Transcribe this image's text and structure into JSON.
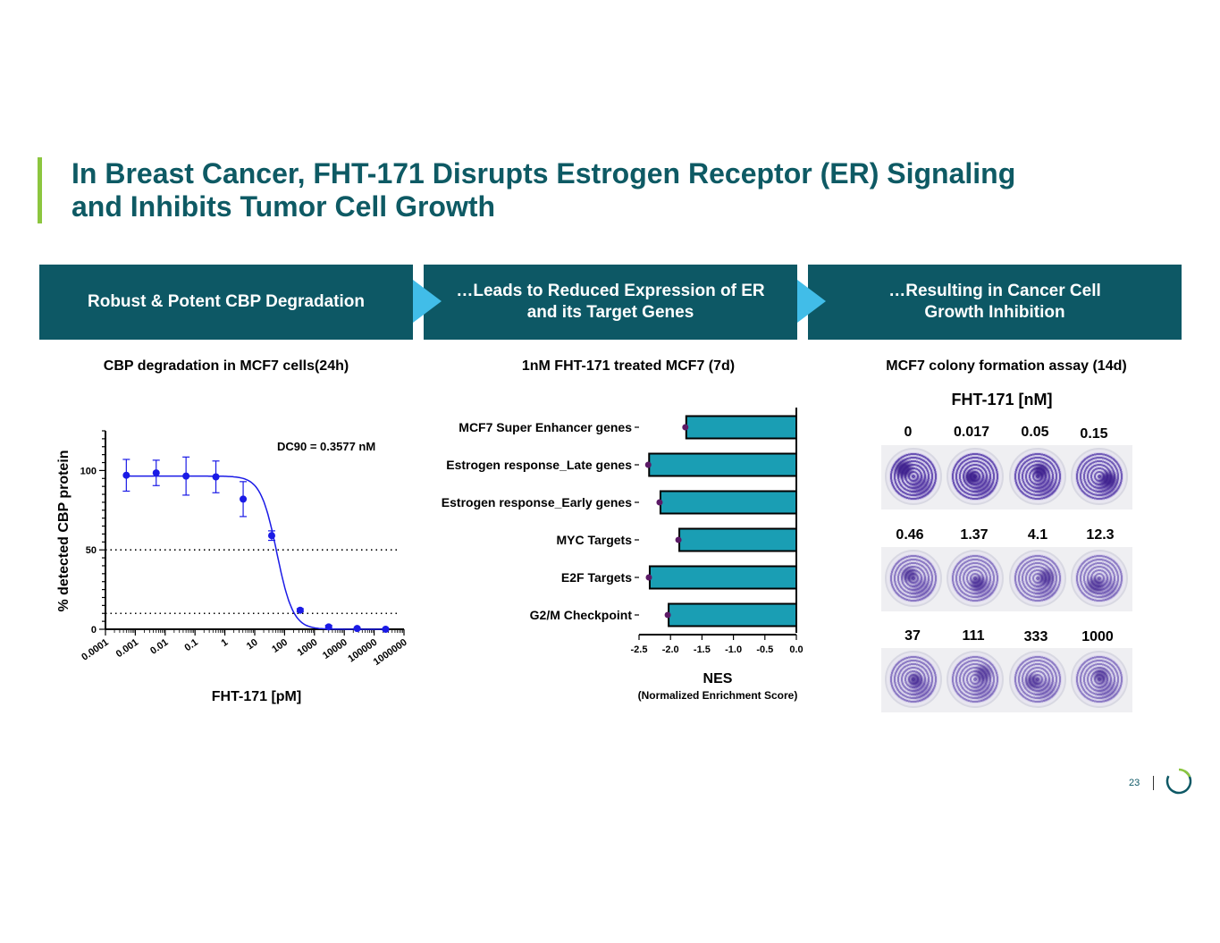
{
  "slide": {
    "title_line1": "In Breast Cancer, FHT-171 Disrupts Estrogen Receptor (ER) Signaling",
    "title_line2": "and Inhibits Tumor Cell Growth",
    "page_number": "23",
    "colors": {
      "accent_bar": "#8cc63f",
      "title": "#0e5a64",
      "banner": "#0d5865",
      "arrow": "#41bde8"
    }
  },
  "banners": [
    {
      "label": "Robust & Potent CBP Degradation"
    },
    {
      "line1": "…Leads to Reduced Expression of ER",
      "line2": "and its Target Genes"
    },
    {
      "line1": "…Resulting in Cancer Cell",
      "line2": "Growth Inhibition"
    }
  ],
  "panel_titles": {
    "left": "CBP degradation in MCF7 cells(24h)",
    "middle": "1nM FHT-171 treated MCF7 (7d)",
    "right": "MCF7 colony formation assay (14d)"
  },
  "chart_data": [
    {
      "type": "scatter",
      "title": "CBP degradation in MCF7 cells(24h)",
      "xlabel": "FHT-171 [pM]",
      "ylabel": "% detected CBP protein",
      "xscale": "log",
      "xlim": [
        0.0001,
        1000000
      ],
      "ylim": [
        0,
        125
      ],
      "x_tick_labels": [
        "0.0001",
        "0.001",
        "0.01",
        "0.1",
        "1",
        "10",
        "100",
        "1000",
        "10000",
        "100000",
        "1000000"
      ],
      "x_ticks": [
        0.0001,
        0.001,
        0.01,
        0.1,
        1,
        10,
        100,
        1000,
        10000,
        100000,
        1000000
      ],
      "y_ticks": [
        0,
        50,
        100
      ],
      "annotation": "DC90 = 0.3577 nM",
      "reference_lines": [
        50,
        10
      ],
      "color": "#1a1ae6",
      "points": [
        {
          "x": 0.0005,
          "y": 97,
          "err": 10
        },
        {
          "x": 0.005,
          "y": 98.5,
          "err": 8
        },
        {
          "x": 0.05,
          "y": 96.5,
          "err": 12
        },
        {
          "x": 0.5,
          "y": 96,
          "err": 10
        },
        {
          "x": 4.1,
          "y": 82,
          "err": 11
        },
        {
          "x": 37,
          "y": 59,
          "err": 3
        },
        {
          "x": 333,
          "y": 12,
          "err": 1
        },
        {
          "x": 3000,
          "y": 1.5,
          "err": 1
        },
        {
          "x": 27000,
          "y": 0.5,
          "err": 0.5
        },
        {
          "x": 243000,
          "y": 0,
          "err": 0.5
        }
      ],
      "fit": {
        "top": 96.5,
        "bottom": 0,
        "ic50": 55,
        "hill": 1.6
      }
    },
    {
      "type": "bar",
      "orientation": "horizontal",
      "title": "1nM FHT-171 treated MCF7 (7d)",
      "xlabel": "NES",
      "xlabel_sub": "(Normalized Enrichment Score)",
      "xlim": [
        -2.5,
        0
      ],
      "x_tick_labels": [
        "-2.5",
        "-2.0",
        "-1.5",
        "-1.0",
        "-0.5",
        "0.0"
      ],
      "x_ticks": [
        -2.5,
        -2.0,
        -1.5,
        -1.0,
        -0.5,
        0.0
      ],
      "categories": [
        "MCF7 Super Enhancer genes",
        "Estrogen response_Late genes",
        "Estrogen response_Early genes",
        "MYC Targets",
        "E2F Targets",
        "G2/M Checkpoint"
      ],
      "values": [
        -1.75,
        -2.34,
        -2.16,
        -1.86,
        -2.33,
        -2.03
      ],
      "bar_color": "#1a9eb4",
      "dot_color": "#5c1a66"
    }
  ],
  "colony_assay": {
    "heading": "FHT-171 [nM]",
    "rows": [
      {
        "labels": [
          "0",
          "0.017",
          "0.05",
          "0.15"
        ],
        "density": [
          0.95,
          0.95,
          0.9,
          0.85
        ]
      },
      {
        "labels": [
          "0.46",
          "1.37",
          "4.1",
          "12.3"
        ],
        "density": [
          0.55,
          0.5,
          0.5,
          0.5
        ]
      },
      {
        "labels": [
          "37",
          "111",
          "333",
          "1000"
        ],
        "density": [
          0.55,
          0.5,
          0.5,
          0.5
        ]
      }
    ]
  }
}
